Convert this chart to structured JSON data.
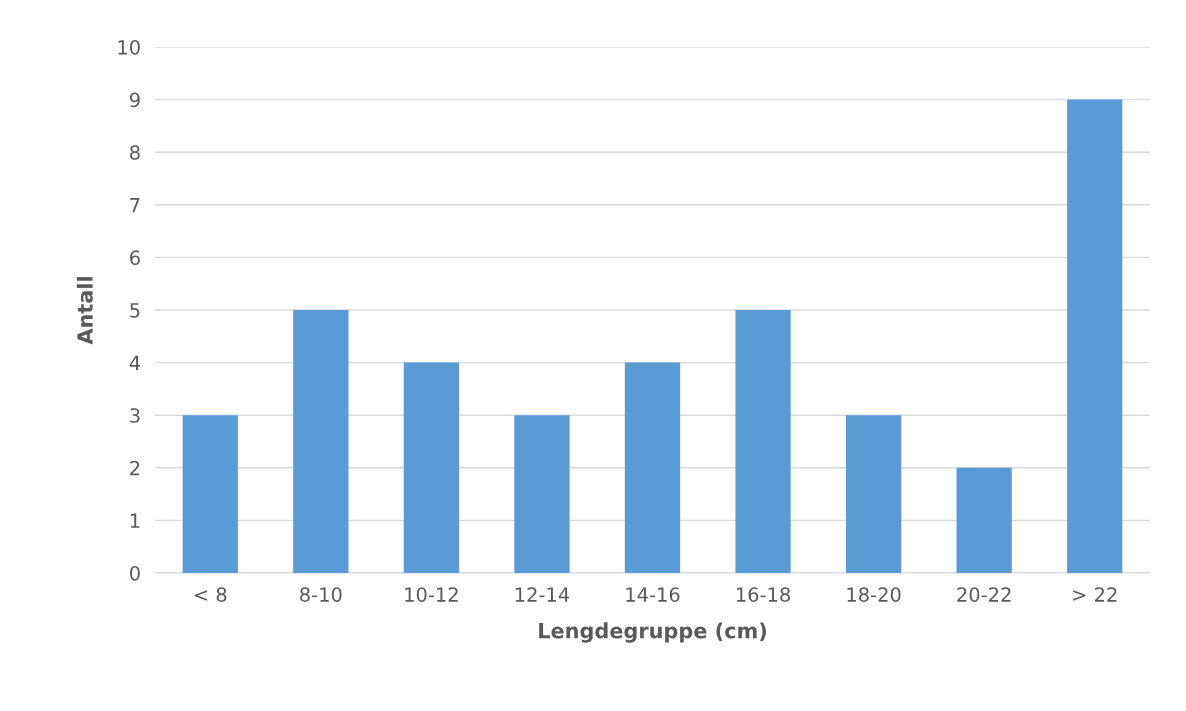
{
  "chart_data": {
    "type": "bar",
    "xlabel": "Lengdegruppe (cm)",
    "ylabel": "Antall",
    "categories": [
      "< 8",
      "8-10",
      "10-12",
      "12-14",
      "14-16",
      "16-18",
      "18-20",
      "20-22",
      "> 22"
    ],
    "values": [
      3,
      5,
      4,
      3,
      4,
      5,
      3,
      2,
      9
    ],
    "color": "#5b9bd5",
    "ylim": [
      0,
      10
    ],
    "yticks": [
      0,
      1,
      2,
      3,
      4,
      5,
      6,
      7,
      8,
      9,
      10
    ],
    "grid": "y",
    "legend": false
  }
}
